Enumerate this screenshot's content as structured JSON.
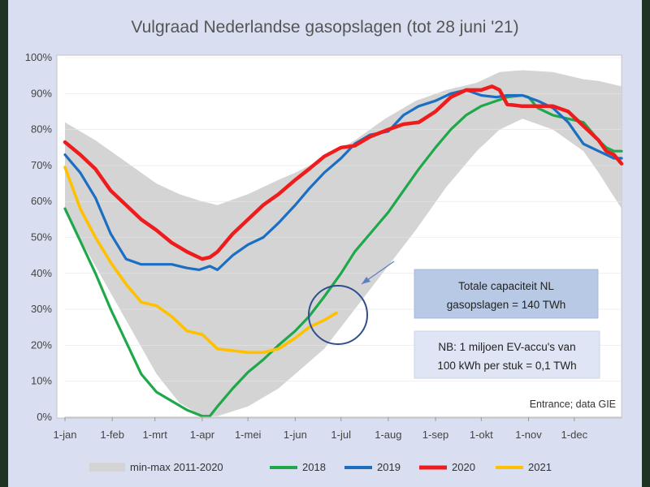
{
  "colors": {
    "background": "#d9dff0",
    "plot": "#ffffff",
    "band": "#d4d4d4",
    "s2018": "#1fa84a",
    "s2019": "#1b6ec2",
    "s2020": "#ee1c1c",
    "s2021": "#ffc000",
    "box1": "#b8c9e6",
    "box2": "#dfe5f4",
    "circle": "#2f4f8f",
    "arrow": "#5b7fc0"
  },
  "chart_data": {
    "type": "line",
    "title": "Vulgraad Nederlandse gasopslagen (tot 28 juni '21)",
    "xlabel": "",
    "ylabel": "",
    "ylim": [
      0,
      100
    ],
    "xlim": [
      0,
      365
    ],
    "yticks": [
      "0%",
      "10%",
      "20%",
      "30%",
      "40%",
      "50%",
      "60%",
      "70%",
      "80%",
      "90%",
      "100%"
    ],
    "x_ticks": [
      {
        "day": 0,
        "label": "1-jan"
      },
      {
        "day": 31,
        "label": "1-feb"
      },
      {
        "day": 59,
        "label": "1-mrt"
      },
      {
        "day": 90,
        "label": "1-apr"
      },
      {
        "day": 120,
        "label": "1-mei"
      },
      {
        "day": 151,
        "label": "1-jun"
      },
      {
        "day": 181,
        "label": "1-jul"
      },
      {
        "day": 212,
        "label": "1-aug"
      },
      {
        "day": 243,
        "label": "1-sep"
      },
      {
        "day": 273,
        "label": "1-okt"
      },
      {
        "day": 304,
        "label": "1-nov"
      },
      {
        "day": 334,
        "label": "1-dec"
      }
    ],
    "band": {
      "name": "min-max 2011-2020",
      "x": [
        0,
        20,
        40,
        60,
        75,
        90,
        100,
        120,
        140,
        151,
        170,
        190,
        210,
        230,
        250,
        270,
        285,
        300,
        320,
        340,
        350,
        365
      ],
      "upper": [
        82,
        77,
        71,
        65,
        62,
        60,
        59,
        62,
        66,
        68,
        72,
        77,
        83,
        88,
        91,
        93,
        96,
        96.5,
        96,
        94,
        93.5,
        92
      ],
      "lower": [
        57,
        42,
        27,
        12,
        4,
        0.3,
        0.3,
        3,
        8,
        12,
        19,
        30,
        41,
        52,
        64,
        74,
        80,
        83,
        80,
        74,
        68,
        58
      ]
    },
    "series": [
      {
        "name": "2018",
        "x": [
          0,
          10,
          20,
          30,
          40,
          50,
          60,
          70,
          80,
          90,
          95,
          100,
          110,
          120,
          130,
          140,
          151,
          160,
          170,
          181,
          190,
          200,
          212,
          222,
          232,
          243,
          253,
          263,
          273,
          283,
          290,
          300,
          304,
          310,
          320,
          330,
          340,
          350,
          355,
          360,
          365
        ],
        "values": [
          58,
          49,
          40,
          30,
          21,
          12,
          7,
          4.5,
          2,
          0.3,
          0.3,
          3,
          8,
          12.5,
          16,
          20,
          24,
          28,
          33.5,
          40,
          46,
          51,
          57,
          63,
          69,
          75,
          80,
          84,
          86.5,
          88,
          89,
          89.5,
          89,
          86,
          84,
          83,
          82,
          77,
          75,
          74,
          74
        ]
      },
      {
        "name": "2019",
        "x": [
          0,
          10,
          20,
          30,
          40,
          50,
          60,
          70,
          80,
          88,
          95,
          100,
          110,
          120,
          130,
          140,
          151,
          160,
          170,
          181,
          190,
          200,
          212,
          222,
          232,
          243,
          253,
          263,
          273,
          283,
          290,
          300,
          310,
          320,
          330,
          340,
          350,
          355,
          360,
          365
        ],
        "values": [
          73,
          68,
          61,
          51,
          44,
          42.5,
          42.5,
          42.5,
          41.5,
          41,
          42,
          41,
          45,
          48,
          50,
          54,
          59,
          63.5,
          68,
          72,
          76,
          78.5,
          79.5,
          84,
          86.5,
          88,
          90,
          91,
          89.5,
          89,
          89.5,
          89.5,
          88,
          86,
          82,
          76,
          74,
          73,
          72,
          72
        ]
      },
      {
        "name": "2020",
        "x": [
          0,
          10,
          20,
          30,
          40,
          50,
          60,
          70,
          80,
          90,
          95,
          100,
          110,
          120,
          130,
          140,
          151,
          160,
          170,
          181,
          190,
          200,
          212,
          222,
          232,
          243,
          253,
          263,
          273,
          280,
          285,
          290,
          300,
          310,
          320,
          330,
          340,
          350,
          355,
          360,
          365
        ],
        "values": [
          76.5,
          73,
          69,
          63,
          59,
          55,
          52,
          48.5,
          46,
          44,
          44.5,
          46,
          51,
          55,
          59,
          62,
          66,
          69,
          72.5,
          75,
          75.5,
          78,
          80,
          81.5,
          82,
          85,
          89,
          91,
          91,
          92,
          91,
          87,
          86.5,
          86.5,
          86.5,
          85,
          81,
          77,
          74,
          73,
          70.5
        ]
      },
      {
        "name": "2021",
        "x": [
          0,
          10,
          20,
          30,
          40,
          50,
          60,
          70,
          80,
          90,
          100,
          110,
          120,
          130,
          140,
          151,
          160,
          170,
          178
        ],
        "values": [
          69.5,
          58,
          50,
          43,
          37,
          32,
          31,
          28,
          24,
          23,
          19,
          18.5,
          18,
          18,
          19,
          22,
          25,
          27,
          29
        ]
      }
    ],
    "legend": [
      "min-max 2011-2020",
      "2018",
      "2019",
      "2020",
      "2021"
    ],
    "legend_position": "bottom"
  },
  "annotations": {
    "capacity_line1": "Totale capaciteit NL",
    "capacity_line2": "gasopslagen = 140 TWh",
    "ev_line1": "NB: 1 miljoen EV-accu's van",
    "ev_line2": "100 kWh per stuk = 0,1 TWh",
    "source": "Entrance; data GIE"
  }
}
